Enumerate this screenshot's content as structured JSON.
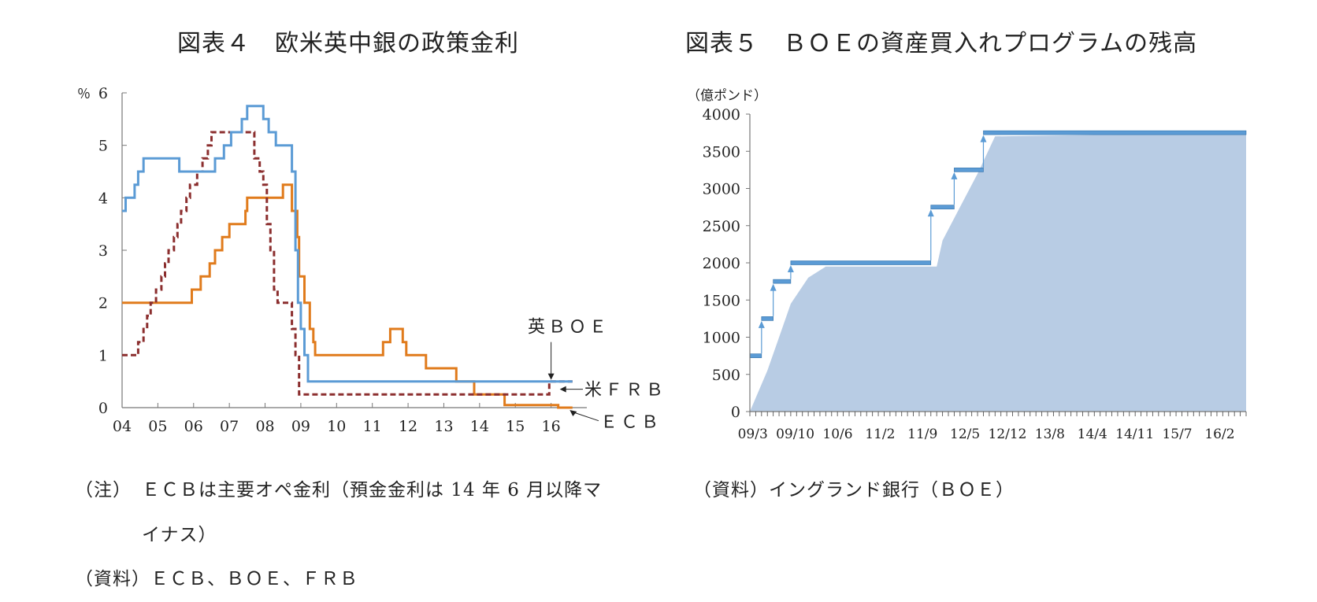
{
  "chart_data": [
    {
      "type": "line",
      "title": "図表４　欧米英中銀の政策金利",
      "y_unit": "％",
      "ylim": [
        0,
        6
      ],
      "yticks": [
        "0",
        "1",
        "2",
        "3",
        "4",
        "5",
        "6"
      ],
      "xlim": [
        2004,
        2017
      ],
      "xticks": [
        "04",
        "05",
        "06",
        "07",
        "08",
        "09",
        "10",
        "11",
        "12",
        "13",
        "14",
        "15",
        "16"
      ],
      "grid": false,
      "series": [
        {
          "name": "英ＢＯＥ",
          "color": "#5b9bd5",
          "style": "solid",
          "points": [
            [
              2004.0,
              3.75
            ],
            [
              2004.1,
              4.0
            ],
            [
              2004.35,
              4.25
            ],
            [
              2004.45,
              4.5
            ],
            [
              2004.6,
              4.75
            ],
            [
              2005.6,
              4.5
            ],
            [
              2006.6,
              4.75
            ],
            [
              2006.85,
              5.0
            ],
            [
              2007.05,
              5.25
            ],
            [
              2007.35,
              5.5
            ],
            [
              2007.5,
              5.75
            ],
            [
              2007.95,
              5.5
            ],
            [
              2008.1,
              5.25
            ],
            [
              2008.3,
              5.0
            ],
            [
              2008.75,
              4.5
            ],
            [
              2008.85,
              3.0
            ],
            [
              2008.92,
              2.0
            ],
            [
              2009.0,
              1.5
            ],
            [
              2009.1,
              1.0
            ],
            [
              2009.2,
              0.5
            ],
            [
              2016.6,
              0.5
            ]
          ]
        },
        {
          "name": "米ＦＲＢ",
          "color": "#8b2e2e",
          "style": "dashed",
          "points": [
            [
              2004.0,
              1.0
            ],
            [
              2004.45,
              1.25
            ],
            [
              2004.6,
              1.5
            ],
            [
              2004.7,
              1.75
            ],
            [
              2004.8,
              2.0
            ],
            [
              2004.95,
              2.25
            ],
            [
              2005.1,
              2.5
            ],
            [
              2005.2,
              2.75
            ],
            [
              2005.3,
              3.0
            ],
            [
              2005.45,
              3.25
            ],
            [
              2005.55,
              3.5
            ],
            [
              2005.65,
              3.75
            ],
            [
              2005.8,
              4.0
            ],
            [
              2005.9,
              4.25
            ],
            [
              2006.1,
              4.5
            ],
            [
              2006.25,
              4.75
            ],
            [
              2006.4,
              5.0
            ],
            [
              2006.5,
              5.25
            ],
            [
              2007.7,
              4.75
            ],
            [
              2007.85,
              4.5
            ],
            [
              2007.95,
              4.25
            ],
            [
              2008.05,
              3.5
            ],
            [
              2008.15,
              3.0
            ],
            [
              2008.25,
              2.25
            ],
            [
              2008.35,
              2.0
            ],
            [
              2008.75,
              1.5
            ],
            [
              2008.85,
              1.0
            ],
            [
              2008.95,
              0.25
            ],
            [
              2015.95,
              0.5
            ],
            [
              2016.6,
              0.5
            ]
          ]
        },
        {
          "name": "ＥＣＢ",
          "color": "#e07b1c",
          "style": "solid",
          "points": [
            [
              2004.0,
              2.0
            ],
            [
              2005.95,
              2.25
            ],
            [
              2006.2,
              2.5
            ],
            [
              2006.45,
              2.75
            ],
            [
              2006.6,
              3.0
            ],
            [
              2006.8,
              3.25
            ],
            [
              2007.0,
              3.5
            ],
            [
              2007.45,
              3.75
            ],
            [
              2007.5,
              4.0
            ],
            [
              2008.5,
              4.25
            ],
            [
              2008.75,
              3.75
            ],
            [
              2008.9,
              3.25
            ],
            [
              2008.95,
              2.5
            ],
            [
              2009.1,
              2.0
            ],
            [
              2009.25,
              1.5
            ],
            [
              2009.35,
              1.25
            ],
            [
              2009.4,
              1.0
            ],
            [
              2011.3,
              1.25
            ],
            [
              2011.5,
              1.5
            ],
            [
              2011.85,
              1.25
            ],
            [
              2011.95,
              1.0
            ],
            [
              2012.5,
              0.75
            ],
            [
              2013.35,
              0.5
            ],
            [
              2013.85,
              0.25
            ],
            [
              2014.7,
              0.05
            ],
            [
              2016.2,
              0.0
            ],
            [
              2016.6,
              0.0
            ]
          ]
        }
      ],
      "labels": {
        "boe": "英ＢＯＥ",
        "frb": "米ＦＲＢ",
        "ecb": "ＥＣＢ"
      }
    },
    {
      "type": "area",
      "title": "図表５　ＢＯＥの資産買入れプログラムの残高",
      "y_unit": "（億ポンド）",
      "ylim": [
        0,
        4000
      ],
      "yticks": [
        "0",
        "500",
        "1000",
        "1500",
        "2000",
        "2500",
        "3000",
        "3500",
        "4000"
      ],
      "xticks": [
        "09/3",
        "09/10",
        "10/6",
        "11/2",
        "11/9",
        "12/5",
        "12/12",
        "13/8",
        "14/4",
        "14/11",
        "15/7",
        "16/2"
      ],
      "grid": false,
      "area_color": "#b8cce4",
      "line_color": "#5b9bd5",
      "holdings": [
        [
          0,
          0
        ],
        [
          3,
          550
        ],
        [
          5,
          1000
        ],
        [
          7,
          1450
        ],
        [
          10,
          1800
        ],
        [
          13,
          1950
        ],
        [
          32,
          1950
        ],
        [
          33,
          2300
        ],
        [
          36,
          2750
        ],
        [
          39,
          3200
        ],
        [
          42,
          3700
        ],
        [
          85,
          3750
        ]
      ],
      "program_targets": [
        [
          0,
          750
        ],
        [
          2,
          1250
        ],
        [
          4,
          1750
        ],
        [
          7,
          2000
        ],
        [
          31,
          2750
        ],
        [
          35,
          3250
        ],
        [
          40,
          3750
        ],
        [
          85,
          3750
        ]
      ]
    }
  ],
  "notes": {
    "n1_prefix": "（注）",
    "n1_line1": "ＥＣＢは主要オペ金利（預金金利は 14 年 6 月以降マ",
    "n1_line2": "イナス）",
    "s1": "（資料）ＥＣＢ、ＢＯＥ、ＦＲＢ",
    "s2": "（資料）イングランド銀行（ＢＯＥ）"
  }
}
